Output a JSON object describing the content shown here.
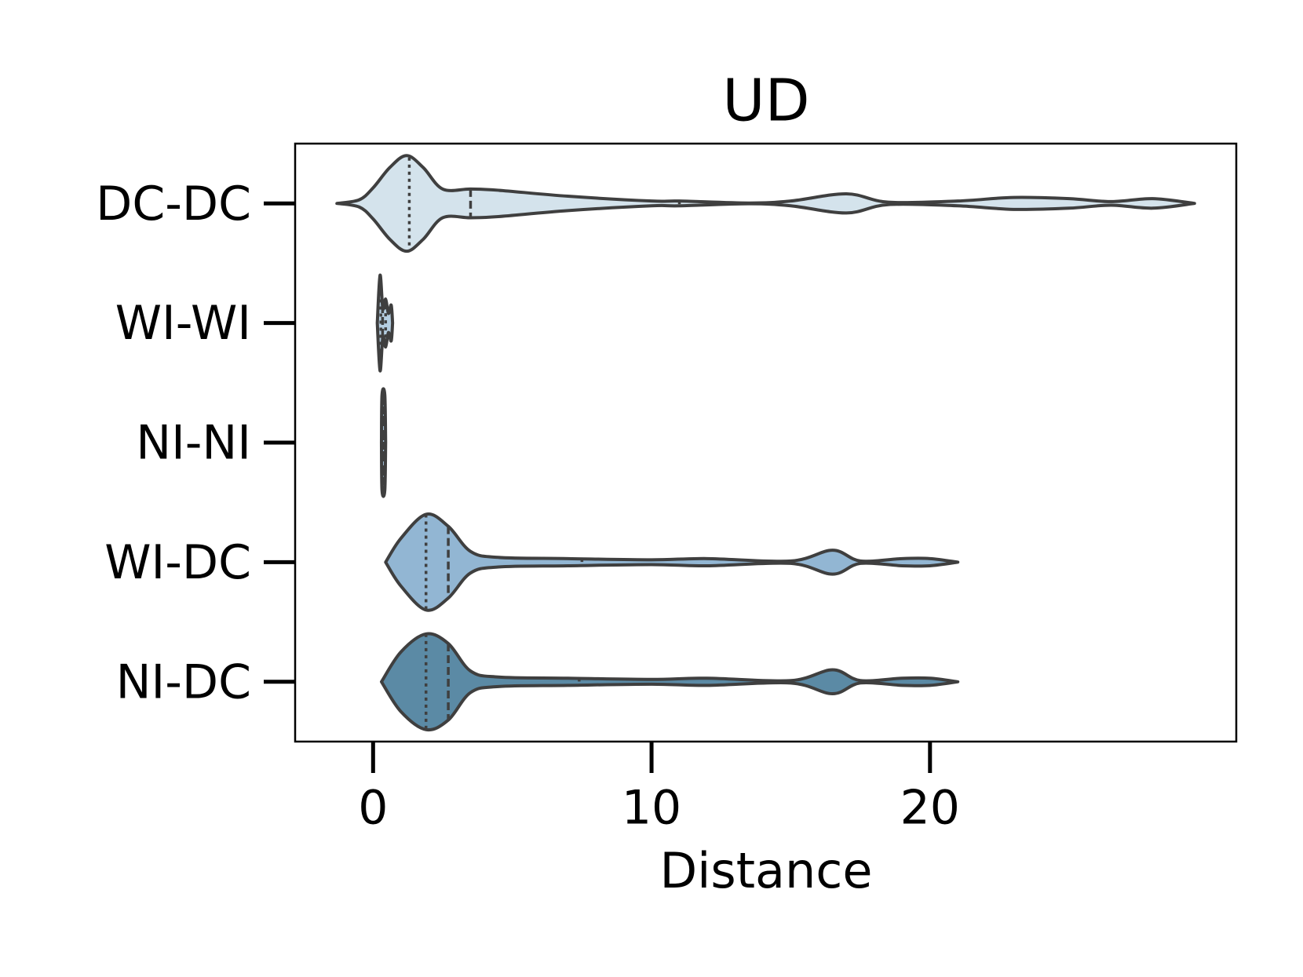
{
  "chart_data": {
    "type": "violin",
    "title": "UD",
    "xlabel": "Distance",
    "categories": [
      "DC-DC",
      "WI-WI",
      "NI-NI",
      "WI-DC",
      "NI-DC"
    ],
    "xlim": [
      -2.8,
      31.0
    ],
    "xticks": [
      0,
      10,
      20
    ],
    "outline_color": "#3f3f3f",
    "series": [
      {
        "color": "#d4e3ec",
        "x": [
          -1.3,
          -0.5,
          0,
          0.6,
          1.2,
          1.8,
          2.5,
          3.5,
          4.5,
          7,
          10,
          11,
          13.5,
          15,
          17,
          18.5,
          21,
          23,
          25,
          26.5,
          28,
          29.5
        ],
        "widths": [
          0,
          0.03,
          0.13,
          0.3,
          0.4,
          0.3,
          0.12,
          0.12,
          0.11,
          0.06,
          0.02,
          0.02,
          0.003,
          0.02,
          0.08,
          0.01,
          0.02,
          0.05,
          0.04,
          0.015,
          0.04,
          0
        ],
        "quartiles": [
          1.3,
          3.5,
          11
        ]
      },
      {
        "color": "#b4cde0",
        "x": [
          0.15,
          0.25,
          0.35,
          0.45,
          0.55,
          0.65,
          0.7
        ],
        "widths": [
          0,
          0.4,
          0.12,
          0.2,
          0.08,
          0.15,
          0
        ],
        "quartiles": [
          0.28,
          0.34,
          0.45
        ]
      },
      {
        "color": "#a5c2d8",
        "x": [
          0.3,
          0.32,
          0.42,
          0.45
        ],
        "widths": [
          0,
          0.4,
          0.4,
          0
        ],
        "quartiles": [
          0.33,
          0.37,
          0.41
        ]
      },
      {
        "color": "#92b6d3",
        "x": [
          0.45,
          1,
          1.9,
          2.7,
          3.5,
          4.5,
          7,
          10,
          12,
          15,
          16.5,
          17.5,
          19,
          20,
          21
        ],
        "widths": [
          0,
          0.2,
          0.4,
          0.3,
          0.09,
          0.04,
          0.03,
          0.02,
          0.03,
          0.01,
          0.1,
          0.01,
          0.03,
          0.03,
          0
        ],
        "quartiles": [
          1.9,
          2.7,
          7.5
        ]
      },
      {
        "color": "#5b8aa5",
        "x": [
          0.3,
          1,
          1.9,
          2.7,
          3.5,
          4.5,
          7,
          10,
          12,
          15,
          16.5,
          17.5,
          19,
          20,
          21
        ],
        "widths": [
          0,
          0.25,
          0.4,
          0.32,
          0.09,
          0.04,
          0.03,
          0.02,
          0.03,
          0.01,
          0.1,
          0.01,
          0.03,
          0.03,
          0
        ],
        "quartiles": [
          1.9,
          2.7,
          7.4
        ]
      }
    ]
  }
}
